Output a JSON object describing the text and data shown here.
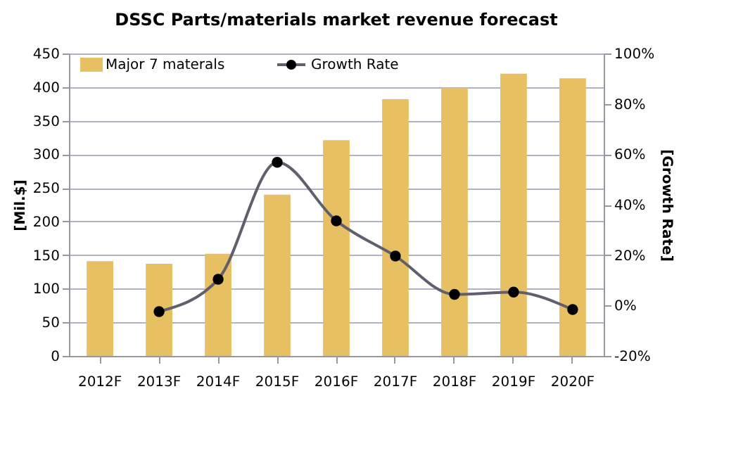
{
  "chart_data": {
    "type": "bar",
    "title": "DSSC Parts/materials market revenue forecast",
    "ylabel": "[Mil.$]",
    "y2label": "[Growth Rate]",
    "categories": [
      "2012F",
      "2013F",
      "2014F",
      "2015F",
      "2016F",
      "2017F",
      "2018F",
      "2019F",
      "2020F"
    ],
    "series": [
      {
        "name": "Major 7 materals",
        "color": "#e8c064",
        "values": [
          141,
          137,
          152,
          240,
          321,
          382,
          399,
          420,
          413
        ]
      },
      {
        "name": "Growth Rate",
        "type": "line",
        "axis": "y2",
        "color": "#5f5f6f",
        "marker": "circle",
        "values": [
          null,
          -2.4,
          10.4,
          56.8,
          33.6,
          19.6,
          4.4,
          5.3,
          -1.6
        ]
      }
    ],
    "ylim": [
      0,
      450
    ],
    "yticks": [
      0,
      50,
      100,
      150,
      200,
      250,
      300,
      350,
      400,
      450
    ],
    "y2lim": [
      -20,
      100
    ],
    "y2ticks": [
      {
        "value": -20,
        "label": "-20%"
      },
      {
        "value": 0,
        "label": "0%"
      },
      {
        "value": 20,
        "label": "20%"
      },
      {
        "value": 40,
        "label": "40%"
      },
      {
        "value": 60,
        "label": "60%"
      },
      {
        "value": 80,
        "label": "80%"
      },
      {
        "value": 100,
        "label": "100%"
      }
    ],
    "grid": "y",
    "legend": "top left"
  }
}
